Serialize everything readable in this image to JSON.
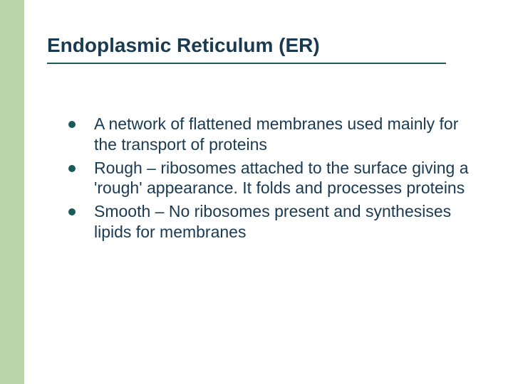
{
  "slide": {
    "title": "Endoplasmic Reticulum (ER)",
    "bullets": [
      "A network of flattened membranes used mainly for the transport of proteins",
      "Rough – ribosomes attached to the surface giving a 'rough' appearance. It folds and processes proteins",
      "Smooth – No ribosomes present and synthesises lipids for membranes"
    ]
  },
  "style": {
    "accent_color": "#b8d4a8",
    "title_color": "#1a3a52",
    "underline_color": "#1a5a5a",
    "bullet_color": "#1a5a5a",
    "text_color": "#1a3a52",
    "background_color": "#ffffff",
    "title_fontsize": 28,
    "body_fontsize": 23
  }
}
